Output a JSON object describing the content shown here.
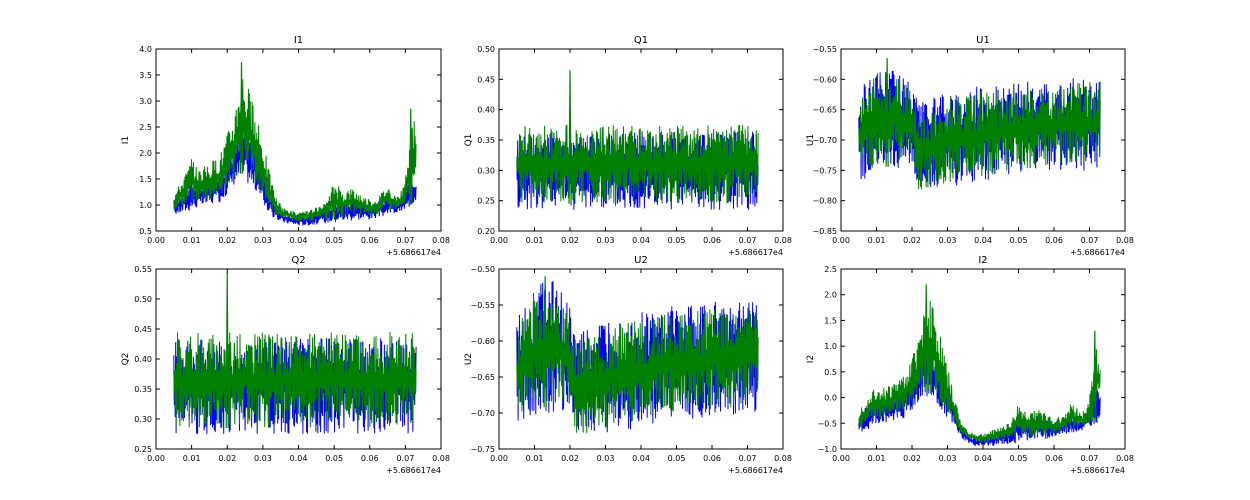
{
  "chart_data": [
    {
      "type": "line",
      "title": "I1",
      "ylabel": "I1",
      "xlim": [
        0.0,
        0.08
      ],
      "ylim": [
        0.5,
        4.0
      ],
      "x_ticks": [
        "0.00",
        "0.01",
        "0.02",
        "0.03",
        "0.04",
        "0.05",
        "0.06",
        "0.07",
        "0.08"
      ],
      "y_ticks": [
        "0.5",
        "1.0",
        "1.5",
        "2.0",
        "2.5",
        "3.0",
        "3.5",
        "4.0"
      ],
      "x_offset_label": "+5.686617e4",
      "series_colors": [
        "#0000ff",
        "#008000"
      ],
      "envelope": {
        "x": [
          0.005,
          0.008,
          0.01,
          0.012,
          0.015,
          0.018,
          0.02,
          0.022,
          0.024,
          0.026,
          0.028,
          0.03,
          0.032,
          0.034,
          0.036,
          0.038,
          0.04,
          0.042,
          0.045,
          0.048,
          0.05,
          0.052,
          0.055,
          0.058,
          0.06,
          0.062,
          0.065,
          0.068,
          0.07,
          0.072,
          0.073
        ],
        "blue_low": [
          0.8,
          0.85,
          0.9,
          0.95,
          1.0,
          1.05,
          1.2,
          1.4,
          1.5,
          1.4,
          1.25,
          1.0,
          0.8,
          0.7,
          0.65,
          0.62,
          0.6,
          0.6,
          0.62,
          0.65,
          0.65,
          0.68,
          0.7,
          0.72,
          0.72,
          0.75,
          0.8,
          0.85,
          0.9,
          1.0,
          1.1
        ],
        "green_low": [
          0.9,
          1.0,
          1.05,
          1.1,
          1.1,
          1.15,
          1.3,
          1.5,
          1.6,
          1.5,
          1.35,
          1.1,
          0.9,
          0.78,
          0.72,
          0.7,
          0.68,
          0.68,
          0.7,
          0.72,
          0.72,
          0.75,
          0.78,
          0.8,
          0.8,
          0.82,
          0.88,
          0.92,
          0.95,
          1.05,
          1.15
        ],
        "green_high": [
          1.2,
          1.6,
          1.9,
          1.7,
          1.8,
          2.0,
          2.4,
          2.8,
          3.75,
          3.3,
          2.7,
          2.3,
          1.6,
          1.1,
          0.95,
          0.9,
          0.85,
          0.88,
          0.95,
          1.05,
          1.5,
          1.3,
          1.35,
          1.2,
          1.1,
          1.15,
          1.4,
          1.15,
          1.5,
          2.85,
          2.4
        ],
        "blue_high": [
          1.1,
          1.3,
          1.5,
          1.4,
          1.5,
          1.6,
          1.9,
          2.2,
          2.6,
          2.4,
          2.1,
          1.8,
          1.3,
          0.95,
          0.85,
          0.82,
          0.8,
          0.82,
          0.88,
          0.95,
          1.2,
          1.1,
          1.15,
          1.05,
          1.0,
          1.05,
          1.2,
          1.05,
          1.25,
          1.6,
          1.4
        ]
      },
      "spikes": [
        {
          "x": 0.024,
          "y": 3.75
        },
        {
          "x": 0.0715,
          "y": 2.85
        }
      ]
    },
    {
      "type": "line",
      "title": "Q1",
      "ylabel": "Q1",
      "xlim": [
        0.0,
        0.08
      ],
      "ylim": [
        0.2,
        0.5
      ],
      "x_ticks": [
        "0.00",
        "0.01",
        "0.02",
        "0.03",
        "0.04",
        "0.05",
        "0.06",
        "0.07",
        "0.08"
      ],
      "y_ticks": [
        "0.20",
        "0.25",
        "0.30",
        "0.35",
        "0.40",
        "0.45",
        "0.50"
      ],
      "x_offset_label": "+5.686617e4",
      "series_colors": [
        "#0000ff",
        "#008000"
      ],
      "envelope": {
        "x": [
          0.005,
          0.073
        ],
        "blue_low": [
          0.235,
          0.235
        ],
        "green_low": [
          0.245,
          0.245
        ],
        "green_high": [
          0.375,
          0.375
        ],
        "blue_high": [
          0.365,
          0.365
        ]
      },
      "spikes": [
        {
          "x": 0.02,
          "y": 0.465
        }
      ]
    },
    {
      "type": "line",
      "title": "U1",
      "ylabel": "U1",
      "xlim": [
        0.0,
        0.08
      ],
      "ylim": [
        -0.85,
        -0.55
      ],
      "x_ticks": [
        "0.00",
        "0.01",
        "0.02",
        "0.03",
        "0.04",
        "0.05",
        "0.06",
        "0.07",
        "0.08"
      ],
      "y_ticks": [
        "−0.85",
        "−0.80",
        "−0.75",
        "−0.70",
        "−0.65",
        "−0.60",
        "−0.55"
      ],
      "x_offset_label": "+5.686617e4",
      "series_colors": [
        "#0000ff",
        "#008000"
      ],
      "envelope": {
        "x": [
          0.005,
          0.01,
          0.015,
          0.02,
          0.022,
          0.03,
          0.04,
          0.05,
          0.06,
          0.073
        ],
        "blue_low": [
          -0.77,
          -0.76,
          -0.75,
          -0.74,
          -0.78,
          -0.78,
          -0.77,
          -0.76,
          -0.755,
          -0.75
        ],
        "green_low": [
          -0.76,
          -0.75,
          -0.74,
          -0.73,
          -0.79,
          -0.77,
          -0.76,
          -0.75,
          -0.745,
          -0.74
        ],
        "green_high": [
          -0.63,
          -0.585,
          -0.58,
          -0.62,
          -0.65,
          -0.63,
          -0.62,
          -0.615,
          -0.61,
          -0.6
        ],
        "blue_high": [
          -0.62,
          -0.575,
          -0.57,
          -0.61,
          -0.64,
          -0.62,
          -0.61,
          -0.605,
          -0.6,
          -0.595
        ]
      },
      "spikes": [
        {
          "x": 0.013,
          "y": -0.565
        }
      ]
    },
    {
      "type": "line",
      "title": "Q2",
      "ylabel": "Q2",
      "xlim": [
        0.0,
        0.08
      ],
      "ylim": [
        0.25,
        0.55
      ],
      "x_ticks": [
        "0.00",
        "0.01",
        "0.02",
        "0.03",
        "0.04",
        "0.05",
        "0.06",
        "0.07",
        "0.08"
      ],
      "y_ticks": [
        "0.25",
        "0.30",
        "0.35",
        "0.40",
        "0.45",
        "0.50",
        "0.55"
      ],
      "x_offset_label": "+5.686617e4",
      "series_colors": [
        "#0000ff",
        "#008000"
      ],
      "envelope": {
        "x": [
          0.005,
          0.073
        ],
        "blue_low": [
          0.275,
          0.275
        ],
        "green_low": [
          0.285,
          0.285
        ],
        "green_high": [
          0.445,
          0.445
        ],
        "blue_high": [
          0.435,
          0.435
        ]
      },
      "spikes": [
        {
          "x": 0.02,
          "y": 0.545
        }
      ]
    },
    {
      "type": "line",
      "title": "U2",
      "ylabel": "U2",
      "xlim": [
        0.0,
        0.08
      ],
      "ylim": [
        -0.75,
        -0.5
      ],
      "x_ticks": [
        "0.00",
        "0.01",
        "0.02",
        "0.03",
        "0.04",
        "0.05",
        "0.06",
        "0.07",
        "0.08"
      ],
      "y_ticks": [
        "−0.75",
        "−0.70",
        "−0.65",
        "−0.60",
        "−0.55",
        "−0.50"
      ],
      "x_offset_label": "+5.686617e4",
      "series_colors": [
        "#0000ff",
        "#008000"
      ],
      "envelope": {
        "x": [
          0.005,
          0.01,
          0.015,
          0.02,
          0.022,
          0.03,
          0.04,
          0.05,
          0.06,
          0.073
        ],
        "blue_low": [
          -0.715,
          -0.705,
          -0.7,
          -0.695,
          -0.73,
          -0.73,
          -0.72,
          -0.71,
          -0.705,
          -0.7
        ],
        "green_low": [
          -0.705,
          -0.695,
          -0.69,
          -0.685,
          -0.735,
          -0.72,
          -0.71,
          -0.7,
          -0.695,
          -0.69
        ],
        "green_high": [
          -0.58,
          -0.53,
          -0.52,
          -0.56,
          -0.6,
          -0.58,
          -0.57,
          -0.56,
          -0.555,
          -0.55
        ],
        "blue_high": [
          -0.57,
          -0.52,
          -0.51,
          -0.55,
          -0.59,
          -0.57,
          -0.56,
          -0.55,
          -0.545,
          -0.54
        ]
      },
      "spikes": [
        {
          "x": 0.013,
          "y": -0.51
        }
      ]
    },
    {
      "type": "line",
      "title": "I2",
      "ylabel": "I2",
      "xlim": [
        0.0,
        0.08
      ],
      "ylim": [
        -1.0,
        2.5
      ],
      "x_ticks": [
        "0.00",
        "0.01",
        "0.02",
        "0.03",
        "0.04",
        "0.05",
        "0.06",
        "0.07",
        "0.08"
      ],
      "y_ticks": [
        "−1.0",
        "−0.5",
        "0.0",
        "0.5",
        "1.0",
        "1.5",
        "2.0",
        "2.5"
      ],
      "x_offset_label": "+5.686617e4",
      "series_colors": [
        "#0000ff",
        "#008000"
      ],
      "envelope": {
        "x": [
          0.005,
          0.008,
          0.01,
          0.012,
          0.015,
          0.018,
          0.02,
          0.022,
          0.024,
          0.026,
          0.028,
          0.03,
          0.032,
          0.034,
          0.036,
          0.038,
          0.04,
          0.042,
          0.045,
          0.048,
          0.05,
          0.052,
          0.055,
          0.058,
          0.06,
          0.062,
          0.065,
          0.068,
          0.07,
          0.072,
          0.073
        ],
        "blue_low": [
          -0.7,
          -0.65,
          -0.55,
          -0.5,
          -0.45,
          -0.4,
          -0.3,
          -0.1,
          0.0,
          -0.1,
          -0.2,
          -0.4,
          -0.6,
          -0.8,
          -0.9,
          -0.95,
          -0.95,
          -0.95,
          -0.93,
          -0.9,
          -0.88,
          -0.85,
          -0.82,
          -0.8,
          -0.78,
          -0.75,
          -0.7,
          -0.65,
          -0.6,
          -0.5,
          -0.4
        ],
        "green_low": [
          -0.6,
          -0.5,
          -0.45,
          -0.4,
          -0.35,
          -0.3,
          -0.2,
          0.0,
          0.1,
          0.0,
          -0.1,
          -0.3,
          -0.5,
          -0.72,
          -0.82,
          -0.88,
          -0.88,
          -0.88,
          -0.85,
          -0.82,
          -0.8,
          -0.78,
          -0.75,
          -0.72,
          -0.7,
          -0.68,
          -0.63,
          -0.58,
          -0.52,
          -0.42,
          -0.32
        ],
        "green_high": [
          -0.25,
          0.1,
          0.3,
          0.2,
          0.3,
          0.5,
          0.8,
          1.2,
          2.2,
          1.8,
          1.2,
          0.6,
          0.0,
          -0.5,
          -0.65,
          -0.7,
          -0.7,
          -0.65,
          -0.55,
          -0.45,
          -0.1,
          -0.25,
          -0.2,
          -0.3,
          -0.4,
          -0.35,
          -0.1,
          -0.3,
          0.0,
          1.3,
          0.8
        ],
        "blue_high": [
          -0.35,
          -0.1,
          0.05,
          0.0,
          0.1,
          0.25,
          0.5,
          0.8,
          1.3,
          1.0,
          0.7,
          0.3,
          -0.2,
          -0.6,
          -0.72,
          -0.78,
          -0.78,
          -0.73,
          -0.65,
          -0.55,
          -0.3,
          -0.4,
          -0.35,
          -0.45,
          -0.5,
          -0.45,
          -0.3,
          -0.45,
          -0.2,
          0.4,
          0.1
        ]
      },
      "spikes": [
        {
          "x": 0.024,
          "y": 2.2
        },
        {
          "x": 0.0715,
          "y": 1.3
        }
      ]
    }
  ]
}
